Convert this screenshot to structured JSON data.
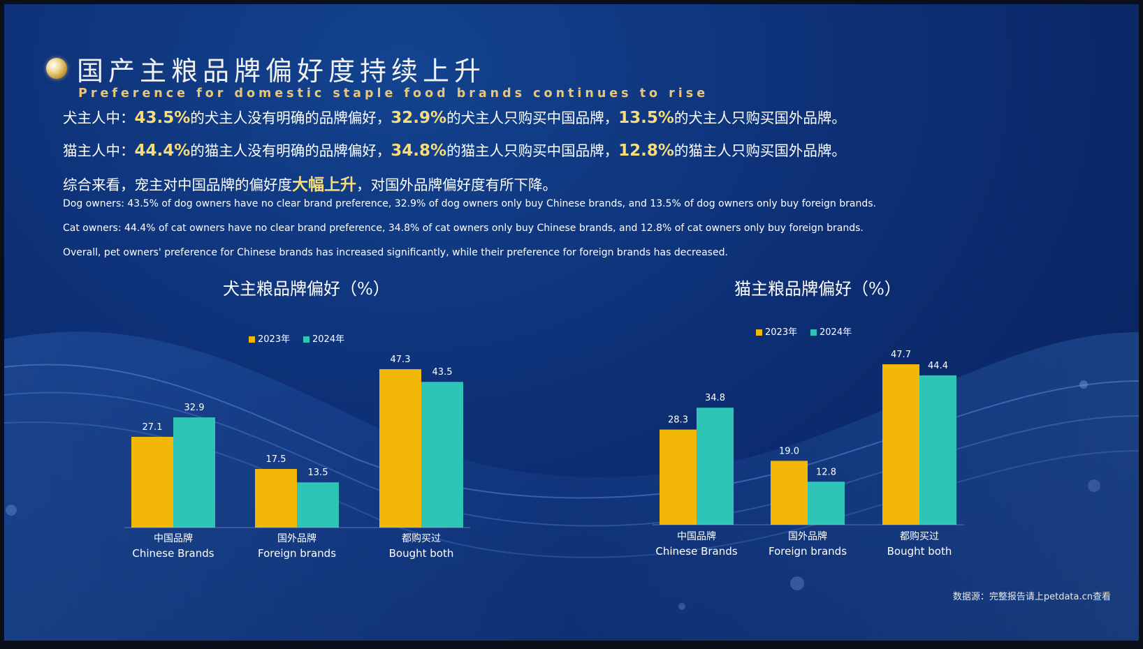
{
  "title_cn": "国产主粮品牌偏好度持续上升",
  "subtitle_en": "Preference for domestic staple food brands continues to rise",
  "summary_cn": {
    "dog": {
      "prefix": "犬主人中：",
      "v1": "43.5%",
      "t1": "的犬主人没有明确的品牌偏好，",
      "v2": "32.9%",
      "t2": "的犬主人只购买中国品牌，",
      "v3": "13.5%",
      "t3": "的犬主人只购买国外品牌。"
    },
    "cat": {
      "prefix": "猫主人中：",
      "v1": "44.4%",
      "t1": "的猫主人没有明确的品牌偏好，",
      "v2": "34.8%",
      "t2": "的猫主人只购买中国品牌，",
      "v3": "12.8%",
      "t3": "的猫主人只购买国外品牌。"
    },
    "overall": {
      "a": "综合来看，宠主对中国品牌的偏好度",
      "hl": "大幅上升",
      "b": "，对国外品牌偏好度有所下降。"
    }
  },
  "summary_en": {
    "dog": "Dog owners: 43.5% of dog owners have no clear brand preference, 32.9% of dog owners only buy Chinese brands, and 13.5% of dog owners only buy foreign brands.",
    "cat": "Cat owners: 44.4% of cat owners have no clear brand preference, 34.8% of cat owners only buy Chinese brands, and 12.8% of cat owners only buy foreign brands.",
    "overall": "Overall, pet owners' preference for Chinese brands has increased significantly, while their preference for foreign brands has decreased."
  },
  "source": "数据源：完整报告请上petdata.cn查看",
  "colors": {
    "y2023": "#f2b707",
    "y2024": "#2ec4b6",
    "label": "#ffffff"
  },
  "chart_data": [
    {
      "type": "bar",
      "title": "犬主粮品牌偏好（%）",
      "categories": [
        "中国品牌\nChinese Brands",
        "国外品牌\nForeign brands",
        "都购买过\nBought both"
      ],
      "series": [
        {
          "name": "2023年",
          "values": [
            27.1,
            17.5,
            47.3
          ]
        },
        {
          "name": "2024年",
          "values": [
            32.9,
            13.5,
            43.5
          ]
        }
      ],
      "value_labels": [
        [
          "27.1",
          "17.5",
          "47.3"
        ],
        [
          "32.9",
          "13.5",
          "43.5"
        ]
      ],
      "legend": "top",
      "grid": false
    },
    {
      "type": "bar",
      "title": "猫主粮品牌偏好（%）",
      "categories": [
        "中国品牌\nChinese Brands",
        "国外品牌\nForeign brands",
        "都购买过\nBought both"
      ],
      "series": [
        {
          "name": "2023年",
          "values": [
            28.3,
            19.0,
            47.7
          ]
        },
        {
          "name": "2024年",
          "values": [
            34.8,
            12.8,
            44.4
          ]
        }
      ],
      "value_labels": [
        [
          "28.3",
          "19.0",
          "47.7"
        ],
        [
          "34.8",
          "12.8",
          "44.4"
        ]
      ],
      "legend": "top",
      "grid": false
    }
  ]
}
